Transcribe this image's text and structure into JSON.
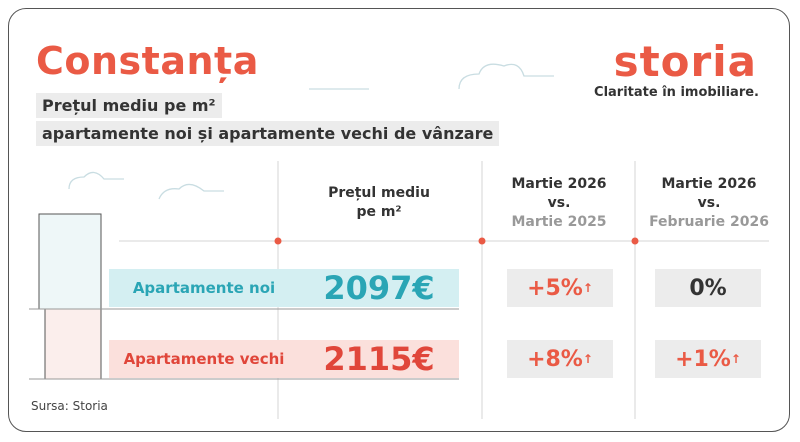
{
  "header": {
    "title": "Constanța",
    "subtitle_lines": [
      "Prețul mediu pe m²",
      "apartamente noi și apartamente vechi de vânzare"
    ]
  },
  "logo": {
    "name": "storia",
    "tagline": "Claritate în imobiliare."
  },
  "table": {
    "headers": [
      [
        "Prețul mediu",
        "pe m²"
      ],
      [
        "Martie 2026",
        "vs.",
        "Martie 2025"
      ],
      [
        "Martie 2026",
        "vs.",
        "Februarie 2026"
      ]
    ],
    "rows": [
      [
        "Apartamente noi",
        "2097€",
        "+5%",
        "0%"
      ],
      [
        "Apartamente vechi",
        "2115€",
        "+8%",
        "+1%"
      ]
    ]
  },
  "footer": {
    "source": "Sursa: Storia"
  }
}
